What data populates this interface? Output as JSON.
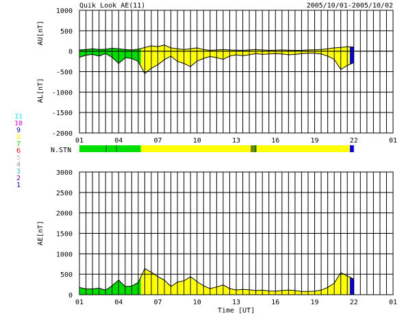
{
  "header": {
    "title": "Quik Look AE(11)",
    "date_range": "2005/10/01-2005/10/02"
  },
  "colors": {
    "stn_1": "#0000ff",
    "stn_2": "#800080",
    "stn_3": "#40c0c0",
    "stn_4": "#999999",
    "stn_5": "#c0c0c0",
    "stn_6": "#ff0000",
    "stn_7": "#00e000",
    "stn_8": "#ffff00",
    "stn_9": "#0000c0",
    "stn_10": "#ff00ff",
    "stn_11": "#00ffff",
    "fill_green": "#00e000",
    "fill_yellow": "#ffff00",
    "fill_blue": "#0000ff",
    "grid": "#000000"
  },
  "legend": {
    "station_counts": [
      {
        "label": "11",
        "color": "#00ffff"
      },
      {
        "label": "10",
        "color": "#ff00ff"
      },
      {
        "label": "9",
        "color": "#0000c0"
      },
      {
        "label": "8",
        "color": "#ffff00"
      },
      {
        "label": "7",
        "color": "#00e000"
      },
      {
        "label": "6",
        "color": "#ff0000"
      },
      {
        "label": "5",
        "color": "#c0c0c0"
      },
      {
        "label": "4",
        "color": "#999999"
      },
      {
        "label": "3",
        "color": "#40c0c0"
      },
      {
        "label": "2",
        "color": "#800080"
      },
      {
        "label": "1",
        "color": "#0000ff"
      }
    ]
  },
  "nstn": {
    "label": "N.STN",
    "segments": [
      {
        "from": 0,
        "to": 2.0,
        "color": "#00e000"
      },
      {
        "from": 2.0,
        "to": 2.1,
        "color": "#008000"
      },
      {
        "from": 2.1,
        "to": 2.8,
        "color": "#00e000"
      },
      {
        "from": 2.8,
        "to": 2.9,
        "color": "#008000"
      },
      {
        "from": 2.9,
        "to": 4.7,
        "color": "#00e000"
      },
      {
        "from": 4.7,
        "to": 13.1,
        "color": "#ffff00"
      },
      {
        "from": 13.1,
        "to": 13.4,
        "color": "#808000"
      },
      {
        "from": 13.4,
        "to": 13.55,
        "color": "#008000"
      },
      {
        "from": 13.55,
        "to": 20.7,
        "color": "#ffff00"
      },
      {
        "from": 20.7,
        "to": 21.0,
        "color": "#0000ff"
      }
    ]
  },
  "chart_data": [
    {
      "type": "area",
      "ylabel_top": "AU[nT]",
      "ylabel_bottom": "AL[nT]",
      "xlim": [
        0,
        24
      ],
      "ylim": [
        -2000,
        1000
      ],
      "yticks": [
        1000,
        500,
        0,
        -500,
        -1000,
        -1500,
        -2000
      ],
      "xtick_labels": [
        "01",
        "04",
        "07",
        "10",
        "13",
        "16",
        "19",
        "22",
        "01"
      ],
      "xtick_hours": [
        0,
        3,
        6,
        9,
        12,
        15,
        18,
        21,
        24
      ],
      "grid": true,
      "series": [
        {
          "x": [
            0,
            0.5,
            1,
            1.5,
            2,
            2.5,
            3,
            3.5,
            4,
            4.5,
            5,
            5.5,
            6,
            6.5,
            7,
            7.5,
            8,
            8.5,
            9,
            9.5,
            10,
            10.5,
            11,
            11.5,
            12,
            12.5,
            13,
            13.5,
            14,
            14.5,
            15,
            15.5,
            16,
            16.5,
            17,
            17.5,
            18,
            18.5,
            19,
            19.5,
            20,
            20.5,
            21
          ],
          "values": [
            30,
            40,
            60,
            40,
            50,
            70,
            60,
            40,
            30,
            50,
            90,
            130,
            110,
            150,
            80,
            60,
            40,
            60,
            80,
            40,
            20,
            30,
            40,
            30,
            25,
            20,
            30,
            40,
            30,
            20,
            25,
            30,
            25,
            20,
            20,
            30,
            35,
            40,
            60,
            80,
            90,
            110,
            100
          ]
        },
        {
          "x": [
            0,
            0.5,
            1,
            1.5,
            2,
            2.5,
            3,
            3.5,
            4,
            4.5,
            5,
            5.5,
            6,
            6.5,
            7,
            7.5,
            8,
            8.5,
            9,
            9.5,
            10,
            10.5,
            11,
            11.5,
            12,
            12.5,
            13,
            13.5,
            14,
            14.5,
            15,
            15.5,
            16,
            16.5,
            17,
            17.5,
            18,
            18.5,
            19,
            19.5,
            20,
            20.5,
            21
          ],
          "values": [
            -150,
            -100,
            -80,
            -120,
            -60,
            -150,
            -300,
            -160,
            -180,
            -250,
            -550,
            -420,
            -330,
            -210,
            -120,
            -250,
            -300,
            -380,
            -240,
            -180,
            -130,
            -160,
            -200,
            -120,
            -90,
            -110,
            -90,
            -60,
            -80,
            -70,
            -60,
            -70,
            -90,
            -80,
            -60,
            -50,
            -50,
            -70,
            -120,
            -200,
            -450,
            -350,
            -280
          ]
        }
      ],
      "fill_segments": [
        {
          "from": 0,
          "to": 4.7,
          "color": "#00e000"
        },
        {
          "from": 4.7,
          "to": 20.7,
          "color": "#ffff00"
        },
        {
          "from": 20.7,
          "to": 21.0,
          "color": "#0000ff"
        }
      ]
    },
    {
      "type": "area",
      "ylabel": "AE[nT]",
      "xlabel": "Time [UT]",
      "xlim": [
        0,
        24
      ],
      "ylim": [
        0,
        3000
      ],
      "yticks": [
        3000,
        2500,
        2000,
        1500,
        1000,
        500,
        0
      ],
      "xtick_labels": [
        "01",
        "04",
        "07",
        "10",
        "13",
        "16",
        "19",
        "22",
        "01"
      ],
      "xtick_hours": [
        0,
        3,
        6,
        9,
        12,
        15,
        18,
        21,
        24
      ],
      "grid": true,
      "series": [
        {
          "x": [
            0,
            0.5,
            1,
            1.5,
            2,
            2.5,
            3,
            3.5,
            4,
            4.5,
            5,
            5.5,
            6,
            6.5,
            7,
            7.5,
            8,
            8.5,
            9,
            9.5,
            10,
            10.5,
            11,
            11.5,
            12,
            12.5,
            13,
            13.5,
            14,
            14.5,
            15,
            15.5,
            16,
            16.5,
            17,
            17.5,
            18,
            18.5,
            19,
            19.5,
            20,
            20.5,
            21
          ],
          "values": [
            180,
            140,
            140,
            160,
            110,
            220,
            360,
            200,
            210,
            300,
            640,
            550,
            440,
            360,
            200,
            310,
            340,
            440,
            320,
            220,
            150,
            190,
            240,
            150,
            115,
            130,
            120,
            100,
            110,
            90,
            85,
            100,
            115,
            100,
            80,
            80,
            85,
            110,
            180,
            280,
            540,
            460,
            380
          ]
        }
      ],
      "fill_segments": [
        {
          "from": 0,
          "to": 4.7,
          "color": "#00e000"
        },
        {
          "from": 4.7,
          "to": 20.7,
          "color": "#ffff00"
        },
        {
          "from": 20.7,
          "to": 21.0,
          "color": "#0000ff"
        }
      ]
    }
  ]
}
